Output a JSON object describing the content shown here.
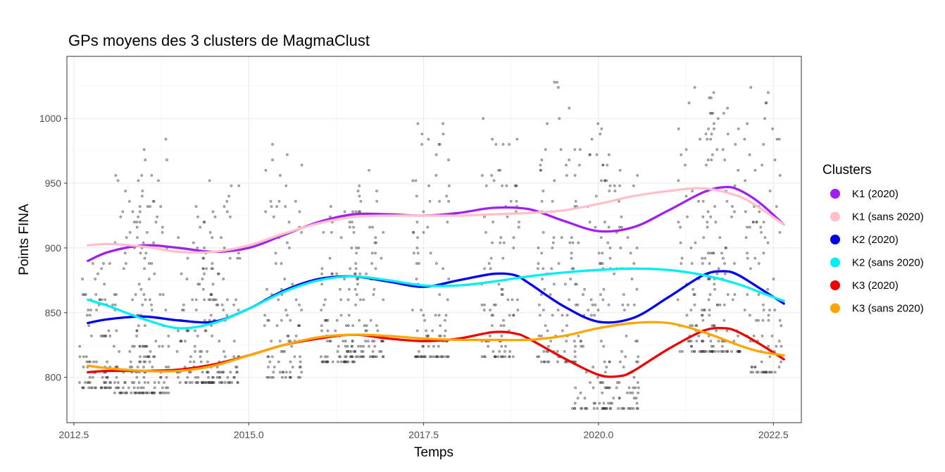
{
  "chart_data": {
    "type": "line",
    "title": "GPs moyens des 3 clusters de MagmaClust",
    "xlabel": "Temps",
    "ylabel": "Points FINA",
    "xlim": [
      2012.4,
      2022.9
    ],
    "ylim": [
      765,
      1048
    ],
    "xticks": [
      2012.5,
      2015.0,
      2017.5,
      2020.0,
      2022.5
    ],
    "xtick_labels": [
      "2012.5",
      "2015.0",
      "2017.5",
      "2020.0",
      "2022.5"
    ],
    "yticks": [
      800,
      850,
      900,
      950,
      1000
    ],
    "ytick_labels": [
      "800",
      "850",
      "900",
      "950",
      "1000"
    ],
    "grid": true,
    "legend": {
      "title": "Clusters",
      "position": "right"
    },
    "series": [
      {
        "name": "K1 (2020)",
        "color": "#a020f0",
        "x": [
          2012.7,
          2013.0,
          2013.5,
          2014.0,
          2014.5,
          2015.0,
          2015.5,
          2016.0,
          2016.5,
          2017.0,
          2017.5,
          2018.0,
          2018.5,
          2019.0,
          2019.5,
          2020.0,
          2020.5,
          2021.0,
          2021.5,
          2021.8,
          2022.0,
          2022.3,
          2022.65
        ],
        "y": [
          890,
          897,
          902,
          900,
          897,
          900,
          910,
          920,
          926,
          926,
          925,
          927,
          931,
          930,
          921,
          913,
          916,
          929,
          943,
          947,
          945,
          935,
          918
        ]
      },
      {
        "name": "K1 (sans 2020)",
        "color": "#ffc0cb",
        "x": [
          2012.7,
          2013.0,
          2013.5,
          2014.0,
          2014.5,
          2015.0,
          2015.5,
          2016.0,
          2016.5,
          2017.0,
          2017.5,
          2018.0,
          2018.5,
          2019.0,
          2019.5,
          2020.0,
          2020.5,
          2021.0,
          2021.5,
          2022.0,
          2022.3,
          2022.65
        ],
        "y": [
          902,
          903,
          901,
          897,
          897,
          902,
          911,
          919,
          924,
          925,
          925,
          925,
          926,
          927,
          929,
          934,
          940,
          944,
          946,
          940,
          931,
          918
        ]
      },
      {
        "name": "K2 (2020)",
        "color": "#0000ee",
        "x": [
          2012.7,
          2013.0,
          2013.5,
          2014.0,
          2014.5,
          2015.0,
          2015.5,
          2016.0,
          2016.5,
          2017.0,
          2017.5,
          2018.0,
          2018.5,
          2018.8,
          2019.0,
          2019.5,
          2020.0,
          2020.5,
          2021.0,
          2021.5,
          2021.8,
          2022.0,
          2022.3,
          2022.65
        ],
        "y": [
          842,
          845,
          847,
          844,
          843,
          853,
          867,
          876,
          878,
          874,
          870,
          875,
          880,
          879,
          873,
          855,
          843,
          846,
          862,
          879,
          882,
          879,
          869,
          857
        ]
      },
      {
        "name": "K2 (sans 2020)",
        "color": "#00f0f0",
        "x": [
          2012.7,
          2013.0,
          2013.5,
          2014.0,
          2014.5,
          2015.0,
          2015.5,
          2016.0,
          2016.5,
          2017.0,
          2017.5,
          2018.0,
          2018.5,
          2019.0,
          2019.5,
          2020.0,
          2020.5,
          2021.0,
          2021.5,
          2022.0,
          2022.3,
          2022.65
        ],
        "y": [
          860,
          855,
          845,
          838,
          842,
          853,
          866,
          875,
          878,
          875,
          871,
          871,
          874,
          878,
          881,
          883,
          884,
          883,
          879,
          872,
          866,
          859
        ]
      },
      {
        "name": "K3 (2020)",
        "color": "#ee0000",
        "x": [
          2012.7,
          2013.0,
          2013.5,
          2014.0,
          2014.5,
          2015.0,
          2015.5,
          2016.0,
          2016.5,
          2017.0,
          2017.5,
          2018.0,
          2018.5,
          2018.8,
          2019.0,
          2019.5,
          2020.0,
          2020.3,
          2020.5,
          2021.0,
          2021.5,
          2021.8,
          2022.0,
          2022.3,
          2022.65
        ],
        "y": [
          804,
          805,
          805,
          806,
          810,
          817,
          825,
          830,
          833,
          830,
          828,
          830,
          835,
          834,
          830,
          815,
          802,
          801,
          805,
          822,
          836,
          838,
          835,
          826,
          814
        ]
      },
      {
        "name": "K3 (sans 2020)",
        "color": "#ffa500",
        "x": [
          2012.7,
          2013.0,
          2013.5,
          2014.0,
          2014.5,
          2015.0,
          2015.5,
          2016.0,
          2016.5,
          2017.0,
          2017.5,
          2018.0,
          2018.5,
          2019.0,
          2019.5,
          2020.0,
          2020.5,
          2021.0,
          2021.5,
          2022.0,
          2022.3,
          2022.65
        ],
        "y": [
          809,
          807,
          805,
          805,
          809,
          817,
          825,
          831,
          833,
          832,
          830,
          829,
          829,
          829,
          832,
          838,
          842,
          842,
          835,
          825,
          820,
          817
        ]
      }
    ]
  }
}
